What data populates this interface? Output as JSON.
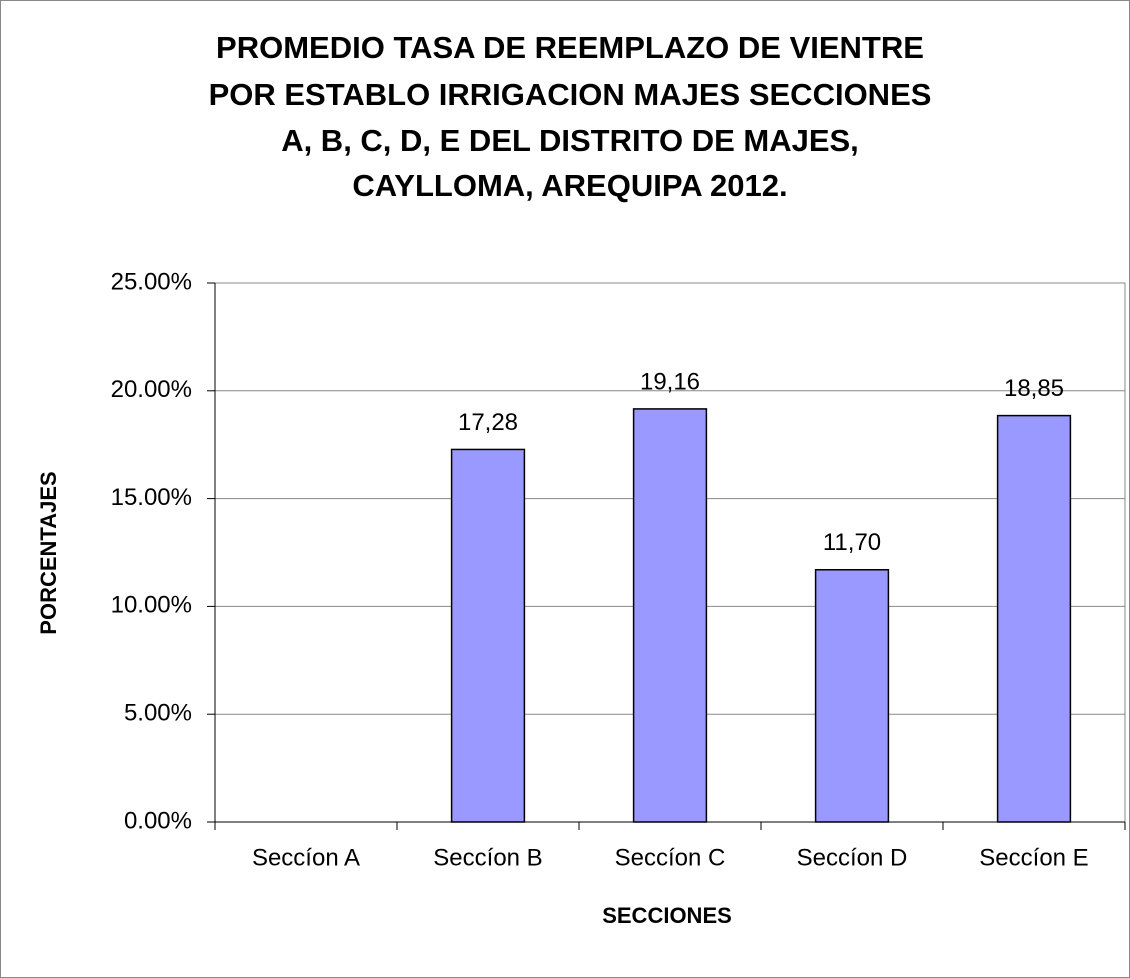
{
  "chart_data": {
    "type": "bar",
    "title": [
      "PROMEDIO TASA DE REEMPLAZO DE VIENTRE",
      "POR ESTABLO IRRIGACION MAJES SECCIONES",
      "A, B, C, D, E DEL DISTRITO DE MAJES,",
      "CAYLLOMA, AREQUIPA 2012."
    ],
    "x_label": "SECCIONES",
    "y_label": "PORCENTAJES",
    "categories": [
      "Seccíon A",
      "Seccíon B",
      "Seccíon C",
      "Seccíon D",
      "Seccíon E"
    ],
    "values": [
      null,
      17.28,
      19.16,
      11.7,
      18.85
    ],
    "value_labels": [
      null,
      "17,28",
      "19,16",
      "11,70",
      "18,85"
    ],
    "color": "#9999ff",
    "ylim": [
      0,
      25
    ],
    "yticks": [
      {
        "value": 0,
        "label": "0.00%"
      },
      {
        "value": 5,
        "label": "5.00%"
      },
      {
        "value": 10,
        "label": "10.00%"
      },
      {
        "value": 15,
        "label": "15.00%"
      },
      {
        "value": 20,
        "label": "20.00%"
      },
      {
        "value": 25,
        "label": "25.00%"
      }
    ],
    "grid": true
  }
}
